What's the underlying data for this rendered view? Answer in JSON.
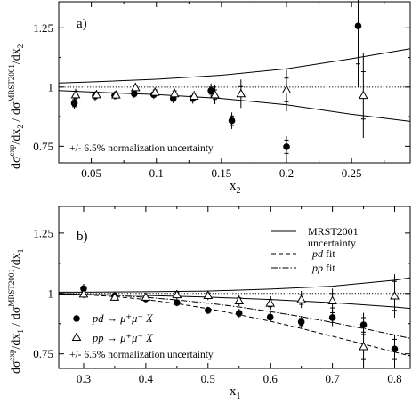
{
  "chart_data": [
    {
      "panel_label": "a)",
      "type": "scatter",
      "xlabel": "x",
      "xlabel_sub": "2",
      "ylabel": {
        "main": "dσ",
        "sup1": "exp",
        "mid": "/dx",
        "sub1": "2",
        "div": " / dσ",
        "sup2": "MRST2001",
        "tail": "/dx",
        "sub2": "2"
      },
      "xlim": [
        0.025,
        0.295
      ],
      "ylim": [
        0.68,
        1.36
      ],
      "xticks": [
        0.05,
        0.1,
        0.15,
        0.2,
        0.25
      ],
      "xtick_labels": [
        "0.05",
        "0.1",
        "0.15",
        "0.2",
        "0.25"
      ],
      "xtick_minor": [
        0.075,
        0.125,
        0.175,
        0.225,
        0.275
      ],
      "yticks": [
        0.75,
        1.0,
        1.25
      ],
      "ytick_labels": [
        "0.75",
        "1",
        "1.25"
      ],
      "ytick_minor": [
        0.875,
        1.125
      ],
      "annotation": "+/- 6.5% normalization uncertainty",
      "reference_line": 1.0,
      "uncertainty_band": {
        "x": [
          0.025,
          0.05,
          0.1,
          0.15,
          0.2,
          0.25,
          0.295
        ],
        "upper": [
          1.017,
          1.022,
          1.033,
          1.05,
          1.077,
          1.12,
          1.162
        ],
        "lower": [
          0.985,
          0.979,
          0.968,
          0.952,
          0.925,
          0.885,
          0.855
        ]
      },
      "series": [
        {
          "marker": "filled-circle",
          "points": [
            {
              "x": 0.037,
              "y": 0.932,
              "stat": 0.015,
              "sys": 0.025
            },
            {
              "x": 0.053,
              "y": 0.962,
              "stat": 0.01,
              "sys": 0.02
            },
            {
              "x": 0.068,
              "y": 0.965,
              "stat": 0.01,
              "sys": 0.018
            },
            {
              "x": 0.083,
              "y": 0.972,
              "stat": 0.01,
              "sys": 0.018
            },
            {
              "x": 0.098,
              "y": 0.968,
              "stat": 0.01,
              "sys": 0.018
            },
            {
              "x": 0.113,
              "y": 0.952,
              "stat": 0.012,
              "sys": 0.02
            },
            {
              "x": 0.128,
              "y": 0.952,
              "stat": 0.012,
              "sys": 0.022
            },
            {
              "x": 0.142,
              "y": 0.985,
              "stat": 0.015,
              "sys": 0.03
            },
            {
              "x": 0.158,
              "y": 0.858,
              "stat": 0.02,
              "sys": 0.035
            },
            {
              "x": 0.2,
              "y": 0.748,
              "stat": 0.028,
              "sys": 0.045
            },
            {
              "x": 0.255,
              "y": 1.258,
              "stat": 0.16,
              "sys": 0.26
            }
          ]
        },
        {
          "marker": "open-triangle",
          "points": [
            {
              "x": 0.038,
              "y": 0.968,
              "stat": 0.015,
              "sys": 0.025
            },
            {
              "x": 0.054,
              "y": 0.968,
              "stat": 0.01,
              "sys": 0.02
            },
            {
              "x": 0.069,
              "y": 0.967,
              "stat": 0.01,
              "sys": 0.018
            },
            {
              "x": 0.084,
              "y": 0.998,
              "stat": 0.01,
              "sys": 0.02
            },
            {
              "x": 0.099,
              "y": 0.978,
              "stat": 0.01,
              "sys": 0.02
            },
            {
              "x": 0.114,
              "y": 0.972,
              "stat": 0.012,
              "sys": 0.022
            },
            {
              "x": 0.129,
              "y": 0.962,
              "stat": 0.012,
              "sys": 0.022
            },
            {
              "x": 0.145,
              "y": 0.968,
              "stat": 0.02,
              "sys": 0.04
            },
            {
              "x": 0.165,
              "y": 0.972,
              "stat": 0.03,
              "sys": 0.06
            },
            {
              "x": 0.2,
              "y": 0.988,
              "stat": 0.05,
              "sys": 0.09
            },
            {
              "x": 0.259,
              "y": 0.965,
              "stat": 0.1,
              "sys": 0.18
            }
          ]
        }
      ]
    },
    {
      "panel_label": "b)",
      "type": "scatter",
      "xlabel": "x",
      "xlabel_sub": "1",
      "ylabel": {
        "main": "dσ",
        "sup1": "exp",
        "mid": "/dx",
        "sub1": "1",
        "div": " / dσ",
        "sup2": "MRST2001",
        "tail": "/dx",
        "sub2": "1"
      },
      "xlim": [
        0.26,
        0.825
      ],
      "ylim": [
        0.69,
        1.36
      ],
      "xticks": [
        0.3,
        0.4,
        0.5,
        0.6,
        0.7,
        0.8
      ],
      "xtick_labels": [
        "0.3",
        "0.4",
        "0.5",
        "0.6",
        "0.7",
        "0.8"
      ],
      "xtick_minor": [
        0.35,
        0.45,
        0.55,
        0.65,
        0.75
      ],
      "yticks": [
        0.75,
        1.0,
        1.25
      ],
      "ytick_labels": [
        "0.75",
        "1",
        "1.25"
      ],
      "ytick_minor": [
        0.875,
        1.125
      ],
      "annotation": "+/- 6.5% normalization uncertainty",
      "reference_line": 1.0,
      "uncertainty_band": {
        "x": [
          0.26,
          0.3,
          0.4,
          0.5,
          0.6,
          0.7,
          0.8,
          0.825
        ],
        "upper": [
          1.005,
          1.005,
          1.007,
          1.01,
          1.018,
          1.03,
          1.055,
          1.065
        ],
        "lower": [
          0.997,
          0.996,
          0.992,
          0.985,
          0.975,
          0.962,
          0.944,
          0.938
        ]
      },
      "legend": {
        "band_label_1": "MRST2001",
        "band_label_2": "uncertainty",
        "pd_fit_label": "pd",
        "pd_fit_suffix": " fit",
        "pp_fit_label": "pp",
        "pp_fit_suffix": " fit",
        "pd_reaction": "pd → μ⁺μ⁻ X",
        "pp_reaction": "pp → μ⁺μ⁻ X"
      },
      "fits": [
        {
          "name": "pd fit",
          "style": "dashed",
          "x": [
            0.26,
            0.3,
            0.35,
            0.4,
            0.45,
            0.5,
            0.55,
            0.6,
            0.65,
            0.7,
            0.75,
            0.8,
            0.825
          ],
          "y": [
            1.0,
            0.995,
            0.987,
            0.975,
            0.958,
            0.937,
            0.912,
            0.885,
            0.855,
            0.823,
            0.79,
            0.757,
            0.742
          ]
        },
        {
          "name": "pp fit",
          "style": "dash-dot",
          "x": [
            0.26,
            0.3,
            0.35,
            0.4,
            0.45,
            0.5,
            0.55,
            0.6,
            0.65,
            0.7,
            0.75,
            0.8,
            0.825
          ],
          "y": [
            1.0,
            0.997,
            0.992,
            0.984,
            0.973,
            0.96,
            0.944,
            0.925,
            0.904,
            0.88,
            0.855,
            0.828,
            0.814
          ]
        }
      ],
      "series": [
        {
          "marker": "filled-circle",
          "points": [
            {
              "x": 0.3,
              "y": 1.02,
              "stat": 0.01,
              "sys": 0.02
            },
            {
              "x": 0.35,
              "y": 0.99,
              "stat": 0.008,
              "sys": 0.016
            },
            {
              "x": 0.4,
              "y": 0.978,
              "stat": 0.008,
              "sys": 0.015
            },
            {
              "x": 0.45,
              "y": 0.962,
              "stat": 0.008,
              "sys": 0.015
            },
            {
              "x": 0.5,
              "y": 0.93,
              "stat": 0.008,
              "sys": 0.015
            },
            {
              "x": 0.55,
              "y": 0.918,
              "stat": 0.01,
              "sys": 0.018
            },
            {
              "x": 0.6,
              "y": 0.902,
              "stat": 0.01,
              "sys": 0.02
            },
            {
              "x": 0.65,
              "y": 0.882,
              "stat": 0.015,
              "sys": 0.025
            },
            {
              "x": 0.7,
              "y": 0.9,
              "stat": 0.02,
              "sys": 0.035
            },
            {
              "x": 0.75,
              "y": 0.87,
              "stat": 0.03,
              "sys": 0.05
            },
            {
              "x": 0.8,
              "y": 0.77,
              "stat": 0.04,
              "sys": 0.06
            }
          ]
        },
        {
          "marker": "open-triangle",
          "points": [
            {
              "x": 0.3,
              "y": 0.998,
              "stat": 0.01,
              "sys": 0.018
            },
            {
              "x": 0.35,
              "y": 0.985,
              "stat": 0.008,
              "sys": 0.015
            },
            {
              "x": 0.4,
              "y": 0.985,
              "stat": 0.008,
              "sys": 0.015
            },
            {
              "x": 0.45,
              "y": 0.995,
              "stat": 0.01,
              "sys": 0.018
            },
            {
              "x": 0.5,
              "y": 0.992,
              "stat": 0.01,
              "sys": 0.02
            },
            {
              "x": 0.55,
              "y": 0.97,
              "stat": 0.012,
              "sys": 0.022
            },
            {
              "x": 0.6,
              "y": 0.96,
              "stat": 0.015,
              "sys": 0.028
            },
            {
              "x": 0.65,
              "y": 0.975,
              "stat": 0.02,
              "sys": 0.035
            },
            {
              "x": 0.7,
              "y": 0.97,
              "stat": 0.03,
              "sys": 0.05
            },
            {
              "x": 0.75,
              "y": 0.78,
              "stat": 0.05,
              "sys": 0.08
            },
            {
              "x": 0.8,
              "y": 0.99,
              "stat": 0.06,
              "sys": 0.09
            }
          ]
        }
      ]
    }
  ]
}
